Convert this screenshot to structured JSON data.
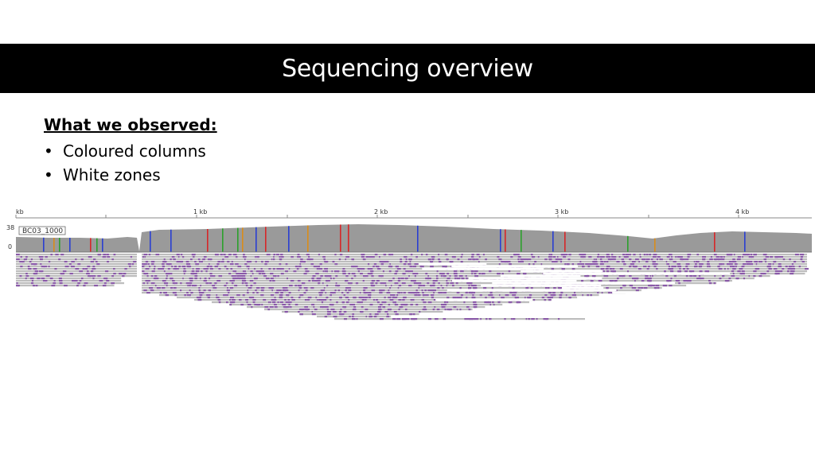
{
  "slide": {
    "title": "Sequencing overview"
  },
  "observations": {
    "heading": "What we observed:",
    "bullet_glyph": "•",
    "items": [
      "Coloured columns",
      "White zones"
    ]
  },
  "igv": {
    "ruler": {
      "start_label": "kb",
      "major_labels": [
        "1 kb",
        "2 kb",
        "3 kb",
        "4 kb"
      ]
    },
    "coverage": {
      "scale_max": "38",
      "scale_min": "0",
      "sample_label": "BC03_1000"
    },
    "colors": {
      "coverage": "#9a9a9a",
      "read": "#bdbdbd",
      "mismatch_purple": "#8a5aa8",
      "A": "#2ca02c",
      "C": "#2a3fd1",
      "G": "#d98c1a",
      "T": "#d62728"
    }
  }
}
